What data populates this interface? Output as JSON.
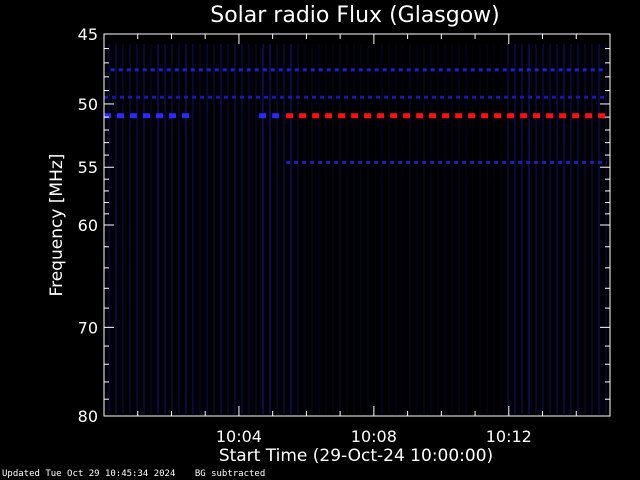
{
  "chart_data": {
    "type": "heatmap",
    "title": "Solar radio Flux (Glasgow)",
    "xlabel": "Start Time (29-Oct-24 10:00:00)",
    "ylabel": "Frequency [MHz]",
    "x_unit": "minutes after 10:00",
    "xlim": [
      0,
      15
    ],
    "ylim": [
      45,
      80
    ],
    "y_scale": "log",
    "x_ticks": [
      {
        "value": 4,
        "label": "10:04"
      },
      {
        "value": 8,
        "label": "10:08"
      },
      {
        "value": 12,
        "label": "10:12"
      }
    ],
    "y_ticks": [
      {
        "value": 45,
        "label": "45"
      },
      {
        "value": 50,
        "label": "50"
      },
      {
        "value": 55,
        "label": "55"
      },
      {
        "value": 60,
        "label": "60"
      },
      {
        "value": 70,
        "label": "70"
      },
      {
        "value": 80,
        "label": "80"
      }
    ],
    "y_minor_ticks": [
      46,
      47,
      48,
      49,
      51,
      52,
      53,
      54,
      56,
      57,
      58,
      59,
      62,
      64,
      66,
      68,
      72,
      74,
      76,
      78
    ],
    "x_minor_ticks": [
      1,
      2,
      3,
      5,
      6,
      7,
      9,
      10,
      11,
      13,
      14
    ],
    "bands": [
      {
        "freq": 47.5,
        "x_start": 0.2,
        "x_end": 14.9,
        "color": "#2020c8"
      },
      {
        "freq": 49.5,
        "x_start": 0.0,
        "x_end": 14.9,
        "color": "#1818a8"
      },
      {
        "freq": 50.9,
        "x_start": 0.0,
        "x_end": 2.6,
        "color": "#2a2aff"
      },
      {
        "freq": 50.9,
        "x_start": 4.6,
        "x_end": 5.2,
        "color": "#2a2aff"
      },
      {
        "freq": 50.9,
        "x_start": 5.4,
        "x_end": 14.9,
        "color": "#ff1010"
      },
      {
        "freq": 54.6,
        "x_start": 5.4,
        "x_end": 14.9,
        "color": "#2020b0"
      }
    ],
    "background_color": "#000000",
    "stripe_color": "#0c0c5a",
    "background_subtracted": true
  },
  "footer": {
    "updated": "Updated Tue Oct 29 10:45:34 2024",
    "note": "BG subtracted"
  }
}
